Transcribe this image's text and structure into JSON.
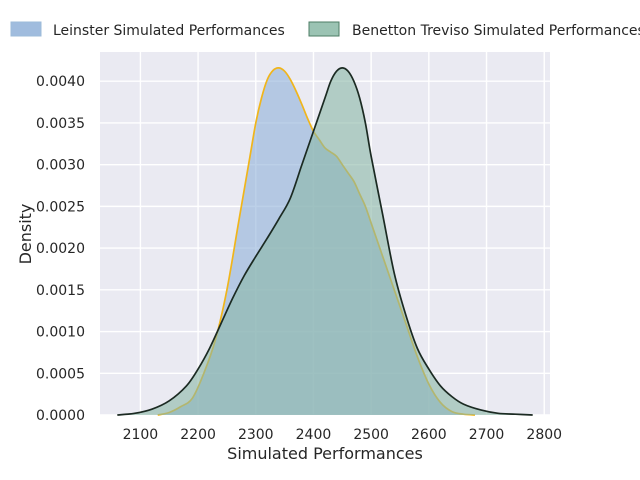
{
  "chart_data": {
    "type": "area",
    "title": "",
    "xlabel": "Simulated Performances",
    "ylabel": "Density",
    "xlim": [
      2030,
      2810
    ],
    "ylim": [
      0,
      0.00435
    ],
    "xticks": [
      2100,
      2200,
      2300,
      2400,
      2500,
      2600,
      2700,
      2800
    ],
    "yticks": [
      0.0,
      0.0005,
      0.001,
      0.0015,
      0.002,
      0.0025,
      0.003,
      0.0035,
      0.004
    ],
    "ytick_labels": [
      "0.0000",
      "0.0005",
      "0.0010",
      "0.0015",
      "0.0020",
      "0.0025",
      "0.0030",
      "0.0035",
      "0.0040"
    ],
    "grid": true,
    "legend_position": "top, outside plot",
    "series": [
      {
        "name": "Leinster Simulated Performances",
        "fill": "#8fb0d8",
        "stroke": "#f0b51b",
        "x": [
          2130,
          2150,
          2170,
          2190,
          2210,
          2230,
          2250,
          2270,
          2290,
          2300,
          2310,
          2320,
          2330,
          2340,
          2350,
          2360,
          2370,
          2380,
          2390,
          2400,
          2410,
          2420,
          2430,
          2440,
          2450,
          2460,
          2470,
          2480,
          2490,
          2500,
          2510,
          2520,
          2540,
          2560,
          2580,
          2600,
          2620,
          2640,
          2660,
          2680
        ],
        "y": [
          0.0,
          3e-05,
          0.0001,
          0.0002,
          0.0005,
          0.0009,
          0.0015,
          0.0023,
          0.0031,
          0.0035,
          0.0038,
          0.00402,
          0.00413,
          0.00416,
          0.00412,
          0.00402,
          0.00388,
          0.00372,
          0.00355,
          0.0034,
          0.0033,
          0.0032,
          0.00315,
          0.0031,
          0.003,
          0.0029,
          0.0028,
          0.00265,
          0.0025,
          0.0023,
          0.0021,
          0.0019,
          0.0015,
          0.0011,
          0.0007,
          0.00037,
          0.00015,
          4e-05,
          1e-05,
          0.0
        ]
      },
      {
        "name": "Benetton Treviso Simulated Performances",
        "fill": "#8ab8a6",
        "stroke": "#1b2a22",
        "x": [
          2060,
          2090,
          2120,
          2150,
          2180,
          2200,
          2220,
          2240,
          2260,
          2280,
          2300,
          2320,
          2340,
          2360,
          2380,
          2400,
          2420,
          2430,
          2440,
          2450,
          2460,
          2470,
          2480,
          2490,
          2500,
          2520,
          2540,
          2560,
          2580,
          2600,
          2620,
          2640,
          2660,
          2690,
          2720,
          2750,
          2780
        ],
        "y": [
          0.0,
          2e-05,
          7e-05,
          0.00017,
          0.00035,
          0.00055,
          0.0008,
          0.0011,
          0.0014,
          0.00167,
          0.0019,
          0.00212,
          0.00235,
          0.0026,
          0.003,
          0.0034,
          0.0038,
          0.004,
          0.00412,
          0.00416,
          0.00412,
          0.004,
          0.0038,
          0.0035,
          0.0031,
          0.0024,
          0.0017,
          0.0012,
          0.0008,
          0.00055,
          0.00035,
          0.00022,
          0.00013,
          6e-05,
          2e-05,
          1e-05,
          0.0
        ]
      }
    ]
  }
}
